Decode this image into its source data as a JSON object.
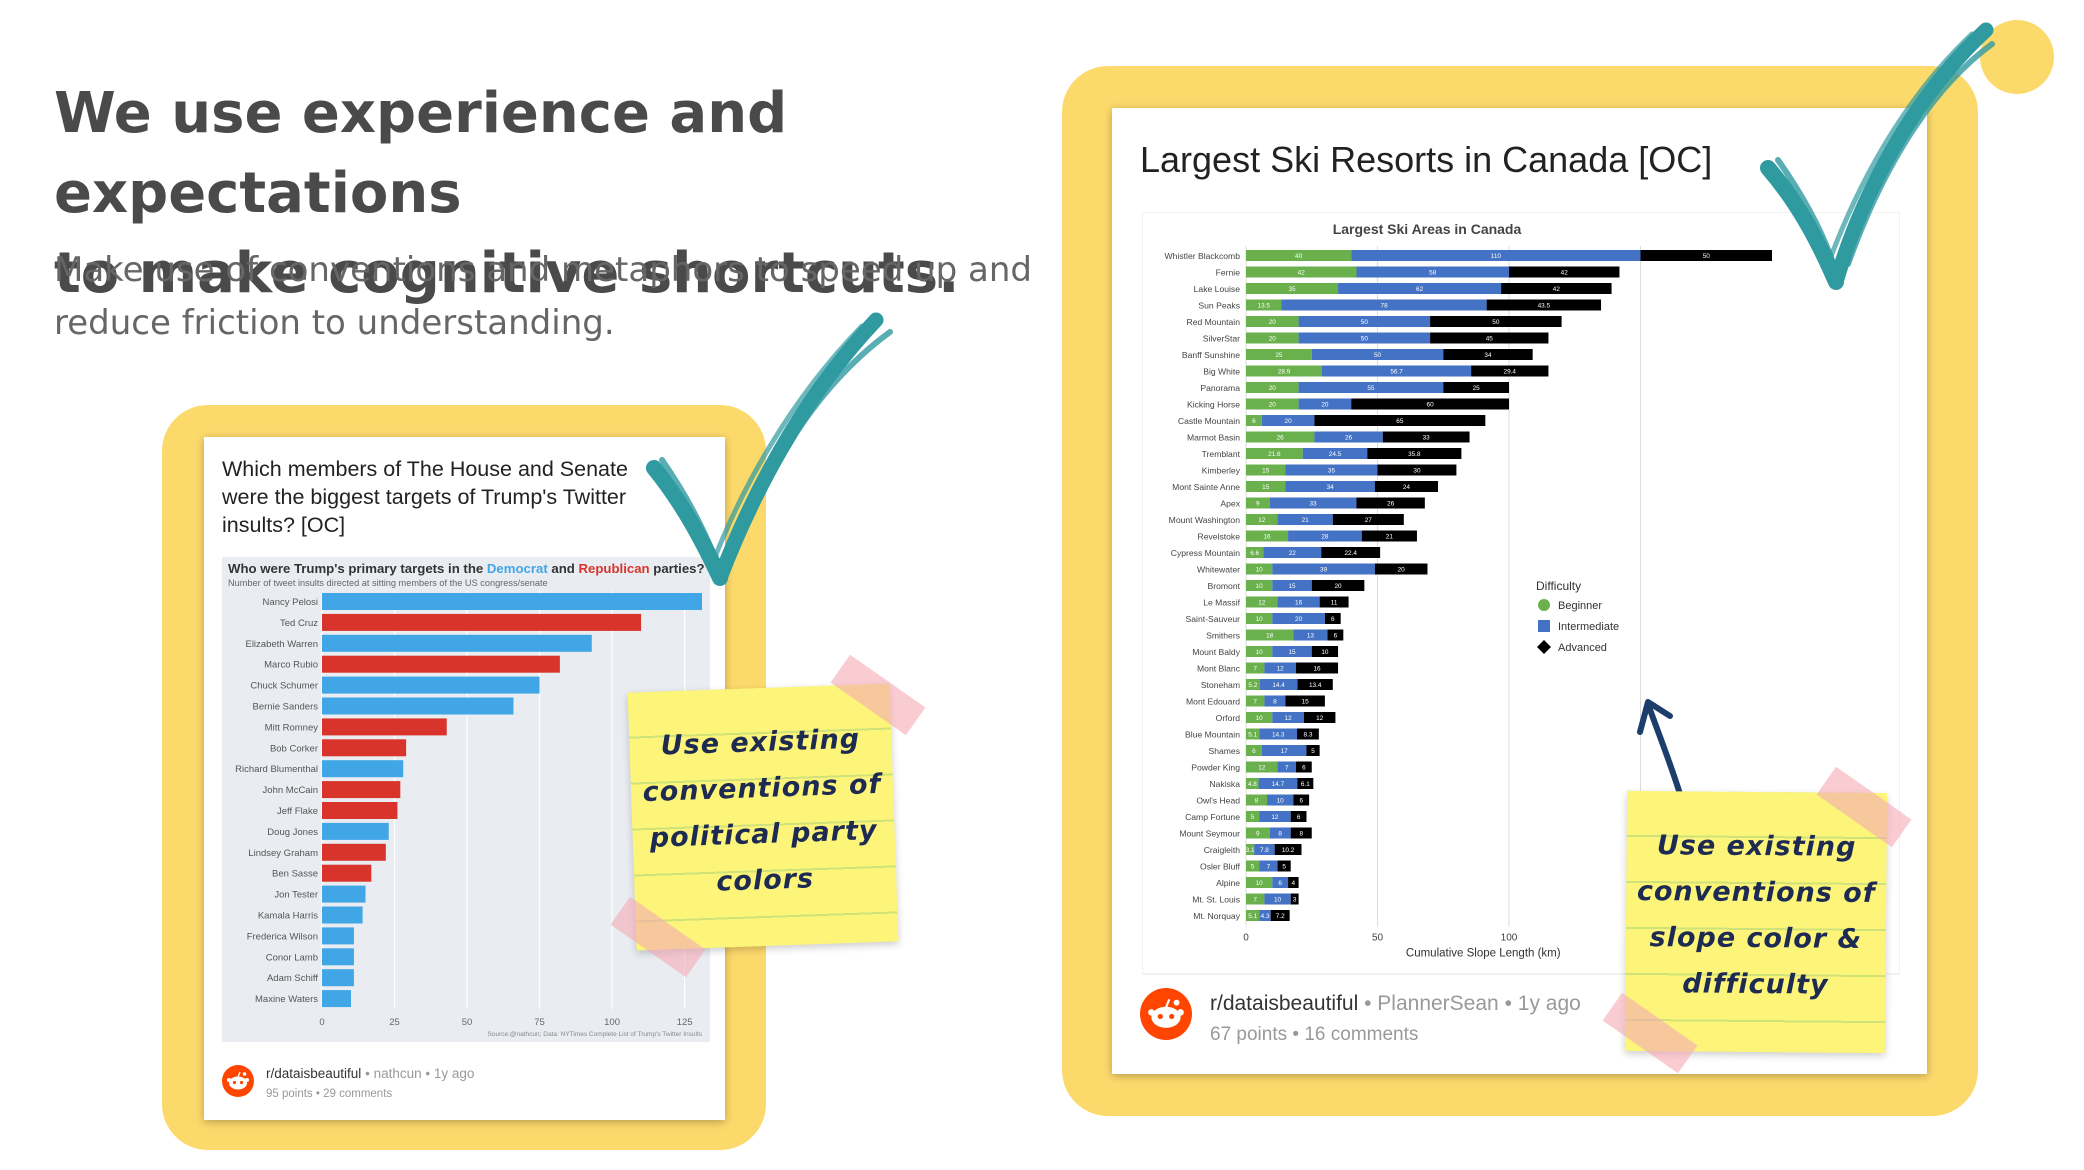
{
  "slide": {
    "heading_line1": "We use experience and expectations",
    "heading_line2": "to make cognitive shortcuts.",
    "sub_line1": "Make use of conventions and metaphors to speed up and",
    "sub_line2": "reduce friction to understanding."
  },
  "left_post": {
    "title_line1": "Which members of The House and Senate",
    "title_line2": "were the biggest targets of Trump's Twitter",
    "title_line3": "insults? [OC]",
    "subreddit": "r/dataisbeautiful",
    "author": "nathcun",
    "age": "1y ago",
    "points": "95 points",
    "comments": "29 comments",
    "note_line1": "Use existing",
    "note_line2": "conventions of",
    "note_line3": "political party",
    "note_line4": "colors"
  },
  "right_post": {
    "title": "Largest Ski Resorts in Canada [OC]",
    "subreddit": "r/dataisbeautiful",
    "author": "PlannerSean",
    "age": "1y ago",
    "points": "67 points",
    "comments": "16 comments",
    "note_line1": "Use existing",
    "note_line2": "conventions of",
    "note_line3": "slope color &",
    "note_line4": "difficulty"
  },
  "colors": {
    "frame": "#fcd96b",
    "democrat": "#41a6e6",
    "republican": "#d9342b",
    "beginner": "#6ab04c",
    "intermediate": "#4472c4",
    "advanced": "#000000",
    "checkmark": "#2f9aa0",
    "reddit": "#ff4500"
  },
  "icons": [
    "reddit-logo-icon",
    "checkmark-icon",
    "arrow-icon"
  ],
  "chart_data": [
    {
      "type": "bar",
      "orientation": "horizontal",
      "title": "Who were Trump's primary targets in the Democrat and Republican parties?",
      "title_parts": {
        "prefix": "Who were Trump's primary targets in the ",
        "democrat": "Democrat",
        "mid": " and ",
        "republican": "Republican",
        "suffix": " parties?"
      },
      "subtitle": "Number of tweet insults directed at sitting members of the US congress/senate",
      "source": "Source:@nathcun; Data: NYTimes Complete List of Trump's Twitter Insults",
      "categories": [
        "Nancy Pelosi",
        "Ted Cruz",
        "Elizabeth Warren",
        "Marco Rubio",
        "Chuck Schumer",
        "Bernie Sanders",
        "Mitt Romney",
        "Bob Corker",
        "Richard Blumenthal",
        "John McCain",
        "Jeff Flake",
        "Doug Jones",
        "Lindsey Graham",
        "Ben Sasse",
        "Jon Tester",
        "Kamala Harris",
        "Frederica Wilson",
        "Conor Lamb",
        "Adam Schiff",
        "Maxine Waters"
      ],
      "values": [
        131,
        110,
        93,
        82,
        75,
        66,
        43,
        29,
        28,
        27,
        26,
        23,
        22,
        17,
        15,
        14,
        11,
        11,
        11,
        10
      ],
      "party": [
        "D",
        "R",
        "D",
        "R",
        "D",
        "D",
        "R",
        "R",
        "D",
        "R",
        "R",
        "D",
        "R",
        "R",
        "D",
        "D",
        "D",
        "D",
        "D",
        "D"
      ],
      "xlim": [
        0,
        131
      ],
      "xticks": [
        0,
        25,
        50,
        75,
        100,
        125
      ],
      "grid": true
    },
    {
      "type": "bar",
      "orientation": "horizontal",
      "stacked": true,
      "title": "Largest Ski Areas in Canada",
      "xlabel": "Cumulative Slope Length (km)",
      "legend_title": "Difficulty",
      "legend_position": "right",
      "xlim": [
        0,
        200
      ],
      "xticks": [
        0,
        50,
        100,
        150
      ],
      "categories": [
        "Whistler Blackcomb",
        "Fernie",
        "Lake Louise",
        "Sun Peaks",
        "Red Mountain",
        "SilverStar",
        "Banff Sunshine",
        "Big White",
        "Panorama",
        "Kicking Horse",
        "Castle Mountain",
        "Marmot Basin",
        "Tremblant",
        "Kimberley",
        "Mont Sainte Anne",
        "Apex",
        "Mount Washington",
        "Revelstoke",
        "Cypress Mountain",
        "Whitewater",
        "Bromont",
        "Le Massif",
        "Saint-Sauveur",
        "Smithers",
        "Mount Baldy",
        "Mont Blanc",
        "Stoneham",
        "Mont Edouard",
        "Orford",
        "Blue Mountain",
        "Shames",
        "Powder King",
        "Nakiska",
        "Owl's Head",
        "Camp Fortune",
        "Mount Seymour",
        "Craigleith",
        "Osler Bluff",
        "Alpine",
        "Mt. St. Louis",
        "Mt. Norquay"
      ],
      "series": [
        {
          "name": "Beginner",
          "values": [
            40,
            42,
            35,
            13.5,
            20,
            20,
            25,
            28.9,
            20,
            20,
            6,
            26,
            21.6,
            15,
            15,
            9,
            12,
            16,
            6.6,
            10,
            10,
            12,
            10,
            18,
            10,
            7,
            5.2,
            7,
            10,
            5.1,
            6,
            12,
            4.8,
            8,
            5,
            9,
            3.1,
            5,
            10,
            7,
            5.1
          ]
        },
        {
          "name": "Intermediate",
          "values": [
            110,
            58,
            62,
            78,
            50,
            50,
            50,
            56.7,
            55,
            20,
            20,
            26,
            24.5,
            35,
            34,
            33,
            21,
            28,
            22,
            39,
            15,
            16,
            20,
            13,
            15,
            12,
            14.4,
            8,
            12,
            14.3,
            17,
            7,
            14.7,
            10,
            12,
            8,
            7.8,
            7,
            6,
            10,
            4.3
          ]
        },
        {
          "name": "Advanced",
          "values": [
            50,
            42,
            42,
            43.5,
            50,
            45,
            34,
            29.4,
            25,
            60,
            65,
            33,
            35.8,
            30,
            24,
            26,
            27,
            21,
            22.4,
            20,
            20,
            11,
            6,
            6,
            10,
            16,
            13.4,
            15,
            12,
            8.3,
            5,
            6,
            6.1,
            6,
            6,
            8,
            10.2,
            5,
            4,
            3,
            7.2
          ]
        }
      ],
      "legend": [
        "Beginner",
        "Intermediate",
        "Advanced"
      ],
      "grid": true
    }
  ]
}
